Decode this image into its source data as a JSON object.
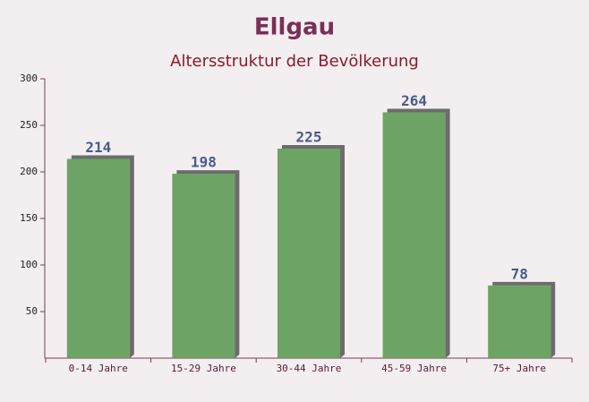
{
  "chart_data": {
    "type": "bar",
    "title": "Ellgau",
    "subtitle": "Altersstruktur der Bevölkerung",
    "categories": [
      "0-14 Jahre",
      "15-29 Jahre",
      "30-44 Jahre",
      "45-59 Jahre",
      "75+ Jahre"
    ],
    "values": [
      214,
      198,
      225,
      264,
      78
    ],
    "color": "#5f9a56",
    "ylim": [
      0,
      300
    ],
    "yticks": [
      50,
      100,
      150,
      200,
      250,
      300
    ],
    "grid": false
  }
}
